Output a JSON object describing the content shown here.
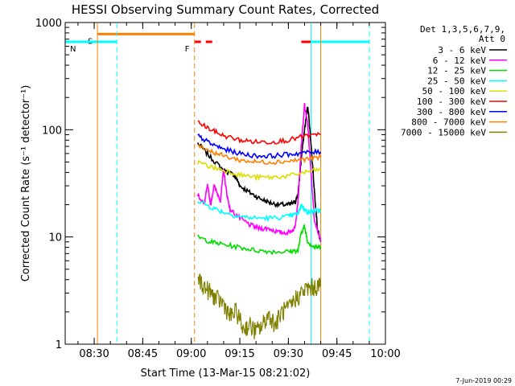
{
  "chart_data": {
    "type": "line",
    "title": "HESSI Observing Summary Count Rates, Corrected",
    "xlabel": "Start Time (13-Mar-15 08:21:02)",
    "ylabel": "Corrected Count Rate (s⁻¹ detector⁻¹)",
    "y_scale": "log",
    "ylim": [
      1,
      1000
    ],
    "xlim": [
      "08:21:02",
      "10:00:00"
    ],
    "x_ticks": [
      "08:30",
      "08:45",
      "09:00",
      "09:15",
      "09:30",
      "09:45",
      "10:00"
    ],
    "y_ticks": [
      "1",
      "10",
      "100",
      "1000"
    ],
    "footer_date": "7-Jun-2019 00:29",
    "legend": {
      "position": "right",
      "header": [
        "Det 1,3,5,6,7,9,",
        "Att 0"
      ],
      "entries": [
        {
          "label": "3 - 6 keV",
          "color": "#000000"
        },
        {
          "label": "6 - 12 keV",
          "color": "#ff00ff"
        },
        {
          "label": "12 - 25 keV",
          "color": "#00dd00"
        },
        {
          "label": "25 - 50 keV",
          "color": "#00ffff"
        },
        {
          "label": "50 - 100 keV",
          "color": "#dddd00"
        },
        {
          "label": "100 - 300 keV",
          "color": "#ff0000"
        },
        {
          "label": "300 - 800 keV",
          "color": "#0000ff"
        },
        {
          "label": "800 - 7000 keV",
          "color": "#ff8000"
        },
        {
          "label": "7000 - 15000 keV",
          "color": "#808000"
        }
      ]
    },
    "flags": [
      {
        "label": "S",
        "color": "#ff8000",
        "start": "08:31:00",
        "end": "09:01:00",
        "y": 780
      },
      {
        "label": "N",
        "color": "#00ffff",
        "start": "08:21:02",
        "end": "08:37:00",
        "y": 660
      },
      {
        "label": "F",
        "color": "#ff0000",
        "start": "09:01:00",
        "end": "09:08:00",
        "y": 660,
        "dashed": true
      },
      {
        "label": "",
        "color": "#ff0000",
        "start": "09:34:00",
        "end": "09:37:00",
        "y": 660
      },
      {
        "label": "",
        "color": "#00ffff",
        "start": "09:37:00",
        "end": "09:55:00",
        "y": 660
      }
    ],
    "vlines": [
      {
        "t": "08:31:00",
        "color": "#ff8000",
        "dashed": false
      },
      {
        "t": "08:37:00",
        "color": "#00ffff",
        "dashed": true
      },
      {
        "t": "09:01:00",
        "color": "#ff8000",
        "dashed": true
      },
      {
        "t": "09:37:00",
        "color": "#00ffff",
        "dashed": false
      },
      {
        "t": "09:40:00",
        "color": "#ff8000",
        "dashed": false
      },
      {
        "t": "09:55:00",
        "color": "#00ffff",
        "dashed": true
      }
    ],
    "series": [
      {
        "name": "3 - 6 keV",
        "color": "#000000",
        "x": [
          "09:02",
          "09:06",
          "09:10",
          "09:13",
          "09:14",
          "09:15",
          "09:18",
          "09:21",
          "09:24",
          "09:27",
          "09:30",
          "09:32",
          "09:33",
          "09:34",
          "09:35",
          "09:36",
          "09:37",
          "09:38",
          "09:39",
          "09:40"
        ],
        "y": [
          75,
          55,
          42,
          38,
          35,
          30,
          26,
          23,
          21,
          20,
          20,
          21,
          25,
          55,
          100,
          170,
          75,
          28,
          12,
          9
        ]
      },
      {
        "name": "6 - 12 keV",
        "color": "#ff00ff",
        "x": [
          "09:02",
          "09:04",
          "09:05",
          "09:06",
          "09:07",
          "09:09",
          "09:10",
          "09:11",
          "09:12",
          "09:15",
          "09:18",
          "09:21",
          "09:24",
          "09:27",
          "09:30",
          "09:32",
          "09:33",
          "09:34",
          "09:35",
          "09:36",
          "09:37",
          "09:38",
          "09:40"
        ],
        "y": [
          25,
          20,
          30,
          20,
          30,
          22,
          42,
          25,
          18,
          15,
          13,
          12,
          12,
          11,
          11,
          12,
          22,
          70,
          170,
          110,
          40,
          15,
          9
        ]
      },
      {
        "name": "12 - 25 keV",
        "color": "#00dd00",
        "x": [
          "09:02",
          "09:06",
          "09:10",
          "09:15",
          "09:20",
          "09:25",
          "09:30",
          "09:33",
          "09:34",
          "09:35",
          "09:36",
          "09:38",
          "09:40"
        ],
        "y": [
          10,
          9,
          8.5,
          8.0,
          7.5,
          7.3,
          7.3,
          7.5,
          11,
          12.5,
          9,
          8,
          8
        ]
      },
      {
        "name": "25 - 50 keV",
        "color": "#00ffff",
        "x": [
          "09:02",
          "09:06",
          "09:10",
          "09:15",
          "09:20",
          "09:25",
          "09:30",
          "09:33",
          "09:34",
          "09:35",
          "09:36",
          "09:38",
          "09:40"
        ],
        "y": [
          22,
          19,
          17,
          15.5,
          15,
          15,
          15.5,
          16.5,
          20,
          18,
          17,
          17.5,
          17.5
        ]
      },
      {
        "name": "50 - 100 keV",
        "color": "#dddd00",
        "x": [
          "09:02",
          "09:06",
          "09:10",
          "09:15",
          "09:20",
          "09:25",
          "09:30",
          "09:35",
          "09:40"
        ],
        "y": [
          50,
          45,
          42,
          38,
          36,
          36,
          37,
          40,
          43
        ]
      },
      {
        "name": "100 - 300 keV",
        "color": "#ff0000",
        "x": [
          "09:02",
          "09:06",
          "09:10",
          "09:15",
          "09:20",
          "09:25",
          "09:30",
          "09:35",
          "09:40"
        ],
        "y": [
          118,
          100,
          88,
          80,
          77,
          77,
          80,
          87,
          90
        ]
      },
      {
        "name": "300 - 800 keV",
        "color": "#0000ff",
        "x": [
          "09:02",
          "09:06",
          "09:10",
          "09:15",
          "09:20",
          "09:25",
          "09:30",
          "09:35",
          "09:40"
        ],
        "y": [
          88,
          74,
          66,
          60,
          57,
          57,
          59,
          61,
          62
        ]
      },
      {
        "name": "800 - 7000 keV",
        "color": "#ff8000",
        "x": [
          "09:02",
          "09:06",
          "09:10",
          "09:15",
          "09:20",
          "09:25",
          "09:30",
          "09:35",
          "09:40"
        ],
        "y": [
          73,
          63,
          57,
          52,
          50,
          50,
          51,
          53,
          55
        ]
      },
      {
        "name": "7000 - 15000 keV",
        "color": "#808000",
        "x": [
          "09:02",
          "09:04",
          "09:06",
          "09:08",
          "09:10",
          "09:12",
          "09:14",
          "09:16",
          "09:18",
          "09:20",
          "09:22",
          "09:24",
          "09:26",
          "09:28",
          "09:30",
          "09:32",
          "09:34",
          "09:36",
          "09:38",
          "09:40"
        ],
        "y": [
          4.2,
          3.4,
          3.0,
          2.6,
          2.4,
          1.8,
          2.0,
          1.4,
          1.5,
          1.3,
          1.5,
          1.9,
          1.5,
          2.0,
          2.1,
          2.6,
          3.0,
          3.3,
          3.4,
          3.5
        ]
      }
    ]
  }
}
